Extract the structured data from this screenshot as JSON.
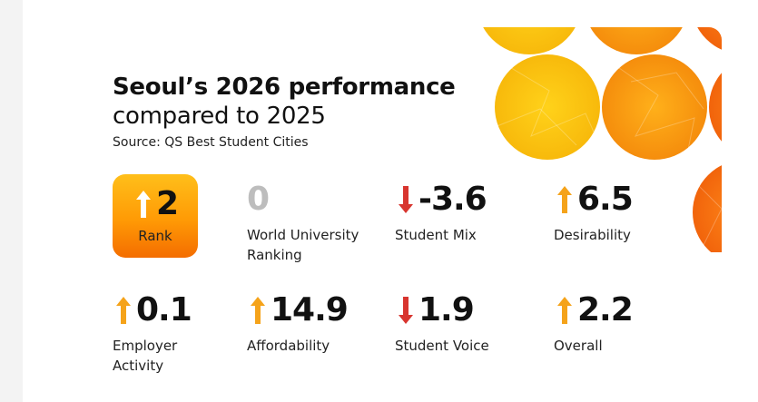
{
  "heading": {
    "line1": "Seoul’s 2026 performance",
    "line2": "compared to 2025"
  },
  "source": "Source: QS Best Student Cities",
  "colors": {
    "up_arrow": "#f5a31a",
    "down_arrow": "#d8352f",
    "rank_gradient_top": "#ffbf1a",
    "rank_gradient_bottom": "#f46d00",
    "neutral_value": "#bdbdbd"
  },
  "stats": [
    {
      "value": "2",
      "direction": "up",
      "label": "Rank",
      "highlighted": true
    },
    {
      "value": "0",
      "direction": "none",
      "label_lines": [
        "World University",
        "Ranking"
      ]
    },
    {
      "value": "-3.6",
      "direction": "down",
      "label": "Student Mix"
    },
    {
      "value": "6.5",
      "direction": "up",
      "label": "Desirability"
    },
    {
      "value": "0.1",
      "direction": "up",
      "label_lines": [
        "Employer",
        "Activity"
      ]
    },
    {
      "value": "14.9",
      "direction": "up",
      "label": "Affordability"
    },
    {
      "value": "1.9",
      "direction": "down",
      "label": "Student Voice"
    },
    {
      "value": "2.2",
      "direction": "up",
      "label": "Overall"
    }
  ]
}
